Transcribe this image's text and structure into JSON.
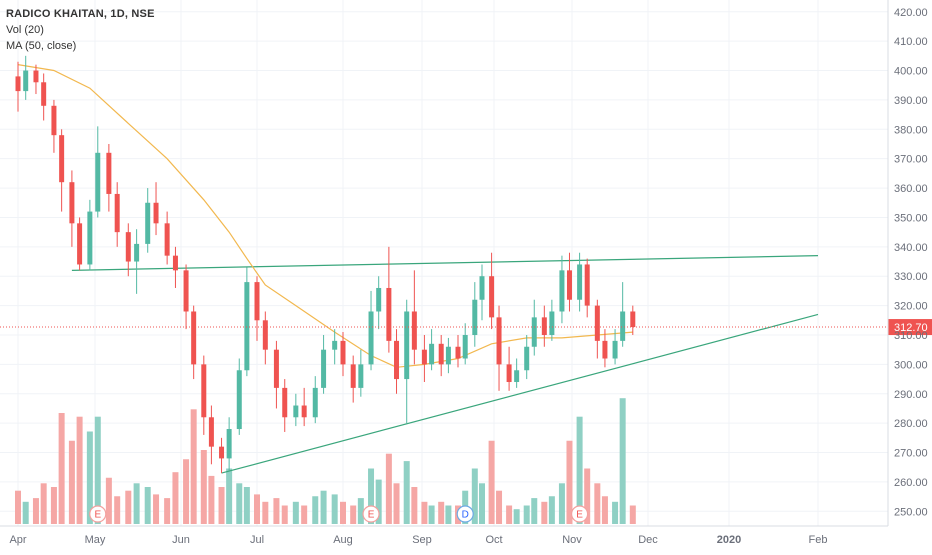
{
  "legend": {
    "symbol": "RADICO KHAITAN, 1D, NSE",
    "volume": "Vol (20)",
    "ma": "MA (50, close)"
  },
  "colors": {
    "up": "#53b9a4",
    "down": "#ef5350",
    "up_volume": "#8fd0c4",
    "down_volume": "#f5a7a5",
    "ma": "#f2b84f",
    "trendline": "#3aa67c",
    "last_price": "#ef5350",
    "grid": "#f0f3f7",
    "axis_text": "#6b6f7a",
    "event_marker_stroke": "#f3a19f",
    "event_marker_text": "#ef5350",
    "dividend_marker_stroke": "#6da9e4",
    "dividend_marker_text": "#2962ff"
  },
  "chart_data": {
    "type": "candlestick",
    "title": "RADICO KHAITAN, 1D, NSE",
    "ylim": [
      245,
      424
    ],
    "y_ticks": [
      "250.00",
      "260.00",
      "270.00",
      "280.00",
      "290.00",
      "300.00",
      "310.00",
      "320.00",
      "330.00",
      "340.00",
      "350.00",
      "360.00",
      "370.00",
      "380.00",
      "390.00",
      "400.00",
      "410.00",
      "420.00"
    ],
    "x_ticks": [
      "Apr",
      "May",
      "Jun",
      "Jul",
      "Aug",
      "Sep",
      "Oct",
      "Nov",
      "Dec",
      "2020",
      "Feb"
    ],
    "last_price": "312.70",
    "candles": [
      {
        "m": "Apr 1",
        "o": 398,
        "c": 393,
        "h": 403,
        "l": 386
      },
      {
        "m": "Apr 4",
        "o": 393,
        "c": 400,
        "h": 405,
        "l": 390
      },
      {
        "m": "Apr 8",
        "o": 400,
        "c": 396,
        "h": 402,
        "l": 392
      },
      {
        "m": "Apr 11",
        "o": 396,
        "c": 388,
        "h": 399,
        "l": 383
      },
      {
        "m": "Apr 15",
        "o": 388,
        "c": 378,
        "h": 390,
        "l": 372
      },
      {
        "m": "Apr 18",
        "o": 378,
        "c": 362,
        "h": 380,
        "l": 352
      },
      {
        "m": "Apr 22",
        "o": 362,
        "c": 348,
        "h": 366,
        "l": 340
      },
      {
        "m": "Apr 25",
        "o": 348,
        "c": 334,
        "h": 350,
        "l": 332
      },
      {
        "m": "Apr 29",
        "o": 334,
        "c": 352,
        "h": 356,
        "l": 332
      },
      {
        "m": "May 2",
        "o": 352,
        "c": 372,
        "h": 381,
        "l": 350
      },
      {
        "m": "May 6",
        "o": 372,
        "c": 358,
        "h": 375,
        "l": 352
      },
      {
        "m": "May 9",
        "o": 358,
        "c": 345,
        "h": 362,
        "l": 340
      },
      {
        "m": "May 13",
        "o": 345,
        "c": 335,
        "h": 348,
        "l": 330
      },
      {
        "m": "May 16",
        "o": 335,
        "c": 341,
        "h": 346,
        "l": 324
      },
      {
        "m": "May 20",
        "o": 341,
        "c": 355,
        "h": 360,
        "l": 338
      },
      {
        "m": "May 23",
        "o": 355,
        "c": 348,
        "h": 362,
        "l": 344
      },
      {
        "m": "May 27",
        "o": 348,
        "c": 337,
        "h": 352,
        "l": 334
      },
      {
        "m": "May 30",
        "o": 337,
        "c": 332,
        "h": 340,
        "l": 326
      },
      {
        "m": "Jun 3",
        "o": 332,
        "c": 318,
        "h": 334,
        "l": 312
      },
      {
        "m": "Jun 6",
        "o": 318,
        "c": 300,
        "h": 320,
        "l": 295
      },
      {
        "m": "Jun 10",
        "o": 300,
        "c": 282,
        "h": 303,
        "l": 276
      },
      {
        "m": "Jun 13",
        "o": 282,
        "c": 272,
        "h": 286,
        "l": 266
      },
      {
        "m": "Jun 17",
        "o": 272,
        "c": 268,
        "h": 275,
        "l": 263
      },
      {
        "m": "Jun 20",
        "o": 268,
        "c": 278,
        "h": 282,
        "l": 264
      },
      {
        "m": "Jun 24",
        "o": 278,
        "c": 298,
        "h": 302,
        "l": 276
      },
      {
        "m": "Jun 27",
        "o": 298,
        "c": 328,
        "h": 333,
        "l": 296
      },
      {
        "m": "Jul 1",
        "o": 328,
        "c": 315,
        "h": 330,
        "l": 308
      },
      {
        "m": "Jul 4",
        "o": 315,
        "c": 305,
        "h": 318,
        "l": 300
      },
      {
        "m": "Jul 8",
        "o": 305,
        "c": 292,
        "h": 308,
        "l": 285
      },
      {
        "m": "Jul 11",
        "o": 292,
        "c": 282,
        "h": 295,
        "l": 277
      },
      {
        "m": "Jul 15",
        "o": 282,
        "c": 286,
        "h": 290,
        "l": 279
      },
      {
        "m": "Jul 18",
        "o": 286,
        "c": 282,
        "h": 292,
        "l": 279
      },
      {
        "m": "Jul 22",
        "o": 282,
        "c": 292,
        "h": 296,
        "l": 280
      },
      {
        "m": "Jul 25",
        "o": 292,
        "c": 305,
        "h": 310,
        "l": 290
      },
      {
        "m": "Jul 29",
        "o": 305,
        "c": 308,
        "h": 312,
        "l": 300
      },
      {
        "m": "Aug 1",
        "o": 308,
        "c": 300,
        "h": 311,
        "l": 296
      },
      {
        "m": "Aug 5",
        "o": 300,
        "c": 292,
        "h": 303,
        "l": 287
      },
      {
        "m": "Aug 8",
        "o": 292,
        "c": 300,
        "h": 305,
        "l": 289
      },
      {
        "m": "Aug 12",
        "o": 300,
        "c": 318,
        "h": 325,
        "l": 298
      },
      {
        "m": "Aug 15",
        "o": 318,
        "c": 326,
        "h": 330,
        "l": 312
      },
      {
        "m": "Aug 19",
        "o": 326,
        "c": 308,
        "h": 340,
        "l": 304
      },
      {
        "m": "Aug 22",
        "o": 308,
        "c": 295,
        "h": 312,
        "l": 290
      },
      {
        "m": "Aug 26",
        "o": 295,
        "c": 318,
        "h": 322,
        "l": 280
      },
      {
        "m": "Aug 29",
        "o": 318,
        "c": 305,
        "h": 332,
        "l": 300
      },
      {
        "m": "Sep 2",
        "o": 305,
        "c": 300,
        "h": 310,
        "l": 294
      },
      {
        "m": "Sep 5",
        "o": 300,
        "c": 307,
        "h": 312,
        "l": 298
      },
      {
        "m": "Sep 9",
        "o": 307,
        "c": 300,
        "h": 310,
        "l": 296
      },
      {
        "m": "Sep 12",
        "o": 300,
        "c": 306,
        "h": 309,
        "l": 297
      },
      {
        "m": "Sep 16",
        "o": 306,
        "c": 302,
        "h": 310,
        "l": 299
      },
      {
        "m": "Sep 19",
        "o": 302,
        "c": 310,
        "h": 314,
        "l": 300
      },
      {
        "m": "Sep 23",
        "o": 310,
        "c": 322,
        "h": 328,
        "l": 306
      },
      {
        "m": "Sep 26",
        "o": 322,
        "c": 330,
        "h": 334,
        "l": 315
      },
      {
        "m": "Sep 30",
        "o": 330,
        "c": 316,
        "h": 338,
        "l": 312
      },
      {
        "m": "Oct 3",
        "o": 316,
        "c": 300,
        "h": 320,
        "l": 291
      },
      {
        "m": "Oct 7",
        "o": 300,
        "c": 294,
        "h": 306,
        "l": 291
      },
      {
        "m": "Oct 10",
        "o": 294,
        "c": 298,
        "h": 302,
        "l": 292
      },
      {
        "m": "Oct 14",
        "o": 298,
        "c": 306,
        "h": 310,
        "l": 295
      },
      {
        "m": "Oct 17",
        "o": 306,
        "c": 316,
        "h": 322,
        "l": 303
      },
      {
        "m": "Oct 21",
        "o": 316,
        "c": 310,
        "h": 320,
        "l": 306
      },
      {
        "m": "Oct 24",
        "o": 310,
        "c": 318,
        "h": 322,
        "l": 308
      },
      {
        "m": "Oct 28",
        "o": 318,
        "c": 332,
        "h": 337,
        "l": 314
      },
      {
        "m": "Oct 31",
        "o": 332,
        "c": 322,
        "h": 338,
        "l": 318
      },
      {
        "m": "Nov 4",
        "o": 322,
        "c": 334,
        "h": 338,
        "l": 318
      },
      {
        "m": "Nov 7",
        "o": 334,
        "c": 320,
        "h": 336,
        "l": 316
      },
      {
        "m": "Nov 11",
        "o": 320,
        "c": 308,
        "h": 322,
        "l": 302
      },
      {
        "m": "Nov 14",
        "o": 308,
        "c": 302,
        "h": 312,
        "l": 299
      },
      {
        "m": "Nov 18",
        "o": 302,
        "c": 308,
        "h": 312,
        "l": 300
      },
      {
        "m": "Nov 21",
        "o": 308,
        "c": 318,
        "h": 328,
        "l": 306
      },
      {
        "m": "Nov 25",
        "o": 318,
        "c": 312.7,
        "h": 320,
        "l": 310
      }
    ],
    "volume": [
      {
        "m": "Apr 1",
        "v": 0.18,
        "d": 1
      },
      {
        "m": "Apr 4",
        "v": 0.12,
        "d": 0
      },
      {
        "m": "Apr 8",
        "v": 0.14,
        "d": 1
      },
      {
        "m": "Apr 11",
        "v": 0.22,
        "d": 1
      },
      {
        "m": "Apr 15",
        "v": 0.2,
        "d": 1
      },
      {
        "m": "Apr 18",
        "v": 0.6,
        "d": 1
      },
      {
        "m": "Apr 22",
        "v": 0.45,
        "d": 1
      },
      {
        "m": "Apr 25",
        "v": 0.58,
        "d": 1
      },
      {
        "m": "Apr 29",
        "v": 0.5,
        "d": 0
      },
      {
        "m": "May 2",
        "v": 0.58,
        "d": 0
      },
      {
        "m": "May 6",
        "v": 0.25,
        "d": 1
      },
      {
        "m": "May 9",
        "v": 0.15,
        "d": 1
      },
      {
        "m": "May 13",
        "v": 0.18,
        "d": 1
      },
      {
        "m": "May 16",
        "v": 0.22,
        "d": 0
      },
      {
        "m": "May 20",
        "v": 0.2,
        "d": 0
      },
      {
        "m": "May 23",
        "v": 0.16,
        "d": 1
      },
      {
        "m": "May 27",
        "v": 0.14,
        "d": 1
      },
      {
        "m": "May 30",
        "v": 0.28,
        "d": 1
      },
      {
        "m": "Jun 3",
        "v": 0.35,
        "d": 1
      },
      {
        "m": "Jun 6",
        "v": 0.62,
        "d": 1
      },
      {
        "m": "Jun 10",
        "v": 0.4,
        "d": 1
      },
      {
        "m": "Jun 13",
        "v": 0.26,
        "d": 1
      },
      {
        "m": "Jun 17",
        "v": 0.2,
        "d": 1
      },
      {
        "m": "Jun 20",
        "v": 0.3,
        "d": 0
      },
      {
        "m": "Jun 24",
        "v": 0.22,
        "d": 0
      },
      {
        "m": "Jun 27",
        "v": 0.2,
        "d": 0
      },
      {
        "m": "Jul 1",
        "v": 0.16,
        "d": 1
      },
      {
        "m": "Jul 4",
        "v": 0.12,
        "d": 1
      },
      {
        "m": "Jul 8",
        "v": 0.14,
        "d": 1
      },
      {
        "m": "Jul 11",
        "v": 0.1,
        "d": 1
      },
      {
        "m": "Jul 15",
        "v": 0.12,
        "d": 0
      },
      {
        "m": "Jul 18",
        "v": 0.1,
        "d": 1
      },
      {
        "m": "Jul 22",
        "v": 0.15,
        "d": 0
      },
      {
        "m": "Jul 25",
        "v": 0.18,
        "d": 0
      },
      {
        "m": "Jul 29",
        "v": 0.16,
        "d": 0
      },
      {
        "m": "Aug 1",
        "v": 0.12,
        "d": 1
      },
      {
        "m": "Aug 5",
        "v": 0.1,
        "d": 1
      },
      {
        "m": "Aug 8",
        "v": 0.14,
        "d": 0
      },
      {
        "m": "Aug 12",
        "v": 0.3,
        "d": 0
      },
      {
        "m": "Aug 15",
        "v": 0.24,
        "d": 0
      },
      {
        "m": "Aug 19",
        "v": 0.38,
        "d": 1
      },
      {
        "m": "Aug 22",
        "v": 0.22,
        "d": 1
      },
      {
        "m": "Aug 26",
        "v": 0.34,
        "d": 0
      },
      {
        "m": "Aug 29",
        "v": 0.2,
        "d": 1
      },
      {
        "m": "Sep 2",
        "v": 0.12,
        "d": 1
      },
      {
        "m": "Sep 5",
        "v": 0.1,
        "d": 0
      },
      {
        "m": "Sep 9",
        "v": 0.12,
        "d": 1
      },
      {
        "m": "Sep 12",
        "v": 0.1,
        "d": 0
      },
      {
        "m": "Sep 16",
        "v": 0.1,
        "d": 1
      },
      {
        "m": "Sep 19",
        "v": 0.18,
        "d": 0
      },
      {
        "m": "Sep 23",
        "v": 0.3,
        "d": 0
      },
      {
        "m": "Sep 26",
        "v": 0.22,
        "d": 0
      },
      {
        "m": "Sep 30",
        "v": 0.45,
        "d": 1
      },
      {
        "m": "Oct 3",
        "v": 0.18,
        "d": 1
      },
      {
        "m": "Oct 7",
        "v": 0.1,
        "d": 1
      },
      {
        "m": "Oct 10",
        "v": 0.08,
        "d": 0
      },
      {
        "m": "Oct 14",
        "v": 0.1,
        "d": 0
      },
      {
        "m": "Oct 17",
        "v": 0.14,
        "d": 0
      },
      {
        "m": "Oct 21",
        "v": 0.12,
        "d": 1
      },
      {
        "m": "Oct 24",
        "v": 0.15,
        "d": 0
      },
      {
        "m": "Oct 28",
        "v": 0.22,
        "d": 0
      },
      {
        "m": "Oct 31",
        "v": 0.45,
        "d": 1
      },
      {
        "m": "Nov 4",
        "v": 0.58,
        "d": 0
      },
      {
        "m": "Nov 7",
        "v": 0.3,
        "d": 1
      },
      {
        "m": "Nov 11",
        "v": 0.22,
        "d": 1
      },
      {
        "m": "Nov 14",
        "v": 0.15,
        "d": 1
      },
      {
        "m": "Nov 18",
        "v": 0.12,
        "d": 0
      },
      {
        "m": "Nov 21",
        "v": 0.68,
        "d": 0
      },
      {
        "m": "Nov 25",
        "v": 0.1,
        "d": 1
      }
    ],
    "ma_50": [
      {
        "m": "Apr 1",
        "v": 402
      },
      {
        "m": "Apr 15",
        "v": 400
      },
      {
        "m": "Apr 29",
        "v": 394
      },
      {
        "m": "May 13",
        "v": 382
      },
      {
        "m": "May 27",
        "v": 370
      },
      {
        "m": "Jun 10",
        "v": 356
      },
      {
        "m": "Jun 20",
        "v": 345
      },
      {
        "m": "Jun 27",
        "v": 336
      },
      {
        "m": "Jul 4",
        "v": 327
      },
      {
        "m": "Jul 15",
        "v": 320
      },
      {
        "m": "Jul 29",
        "v": 311
      },
      {
        "m": "Aug 12",
        "v": 303
      },
      {
        "m": "Aug 22",
        "v": 299
      },
      {
        "m": "Sep 2",
        "v": 300
      },
      {
        "m": "Sep 16",
        "v": 302
      },
      {
        "m": "Sep 30",
        "v": 307
      },
      {
        "m": "Oct 14",
        "v": 309
      },
      {
        "m": "Oct 28",
        "v": 309
      },
      {
        "m": "Nov 11",
        "v": 310
      },
      {
        "m": "Nov 25",
        "v": 311
      }
    ],
    "trendlines": [
      {
        "name": "resistance",
        "from": {
          "m": "Apr 22",
          "v": 332
        },
        "to": {
          "m": "Feb 1",
          "v": 337
        }
      },
      {
        "name": "support",
        "from": {
          "m": "Jun 17",
          "v": 263
        },
        "to": {
          "m": "Feb 1",
          "v": 317
        }
      }
    ],
    "events": [
      {
        "m": "May 2",
        "label": "E",
        "kind": "earnings"
      },
      {
        "m": "Aug 12",
        "label": "E",
        "kind": "earnings"
      },
      {
        "m": "Sep 19",
        "label": "D",
        "kind": "dividend"
      },
      {
        "m": "Nov 4",
        "label": "E",
        "kind": "earnings"
      }
    ]
  }
}
